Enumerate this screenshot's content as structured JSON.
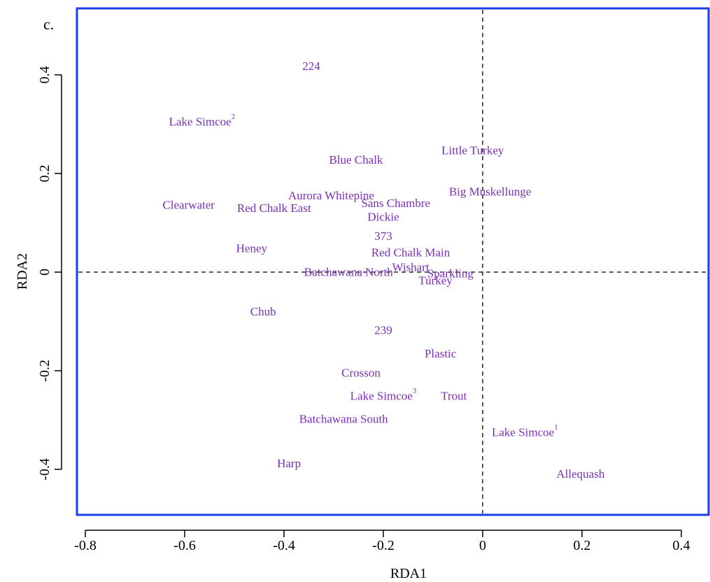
{
  "panel_label": "c.",
  "chart_data": {
    "type": "scatter",
    "xlabel": "RDA1",
    "ylabel": "RDA2",
    "xlim": [
      -0.8,
      0.45
    ],
    "ylim": [
      -0.49,
      0.54
    ],
    "x_ticks": [
      -0.8,
      -0.6,
      -0.4,
      -0.2,
      0,
      0.2,
      0.4
    ],
    "x_tick_labels": [
      "-0.8",
      "-0.6",
      "-0.4",
      "-0.2",
      "0",
      "0.2",
      "0.4"
    ],
    "y_ticks": [
      -0.4,
      -0.2,
      0,
      0.2,
      0.4
    ],
    "y_tick_labels": [
      "-0.4",
      "-0.2",
      "0",
      "0.2",
      "0.4"
    ],
    "reference_lines": {
      "x": 0,
      "y": 0,
      "style": "dashed"
    },
    "grid": false,
    "colors": {
      "frame": "#1a3fe8",
      "labels": "#7a2fb5",
      "axes": "#000000"
    },
    "points": [
      {
        "label": "224",
        "x": -0.345,
        "y": 0.418
      },
      {
        "label": "Lake Simcoe",
        "sup": "2",
        "x": -0.565,
        "y": 0.305
      },
      {
        "label": "Little Turkey",
        "x": -0.02,
        "y": 0.247
      },
      {
        "label": "Blue Chalk",
        "x": -0.255,
        "y": 0.228
      },
      {
        "label": "Big Muskellunge",
        "x": 0.015,
        "y": 0.163
      },
      {
        "label": "Aurora Whitepine",
        "x": -0.305,
        "y": 0.155
      },
      {
        "label": "Clearwater",
        "x": -0.592,
        "y": 0.136
      },
      {
        "label": "Sans Chambre",
        "x": -0.175,
        "y": 0.14
      },
      {
        "label": "Red Chalk East",
        "x": -0.42,
        "y": 0.13
      },
      {
        "label": "Dickie",
        "x": -0.2,
        "y": 0.112
      },
      {
        "label": "373",
        "x": -0.2,
        "y": 0.073
      },
      {
        "label": "Heney",
        "x": -0.465,
        "y": 0.048
      },
      {
        "label": "Red Chalk Main",
        "x": -0.145,
        "y": 0.04
      },
      {
        "label": "Wishart",
        "x": -0.145,
        "y": 0.01
      },
      {
        "label": "Batchawana North",
        "x": -0.27,
        "y": 0.0
      },
      {
        "label": "Sparkling",
        "x": -0.065,
        "y": -0.003
      },
      {
        "label": "Turkey",
        "x": -0.095,
        "y": -0.017
      },
      {
        "label": "Chub",
        "x": -0.442,
        "y": -0.08
      },
      {
        "label": "239",
        "x": -0.2,
        "y": -0.118
      },
      {
        "label": "Plastic",
        "x": -0.085,
        "y": -0.165
      },
      {
        "label": "Crosson",
        "x": -0.245,
        "y": -0.204
      },
      {
        "label": "Lake Simcoe",
        "sup": "3",
        "x": -0.2,
        "y": -0.251
      },
      {
        "label": "Trout",
        "x": -0.058,
        "y": -0.251
      },
      {
        "label": "Batchawana South",
        "x": -0.28,
        "y": -0.298
      },
      {
        "label": "Lake Simcoe",
        "sup": "1",
        "x": 0.085,
        "y": -0.325
      },
      {
        "label": "Harp",
        "x": -0.39,
        "y": -0.388
      },
      {
        "label": "Allequash",
        "x": 0.197,
        "y": -0.409
      }
    ]
  }
}
